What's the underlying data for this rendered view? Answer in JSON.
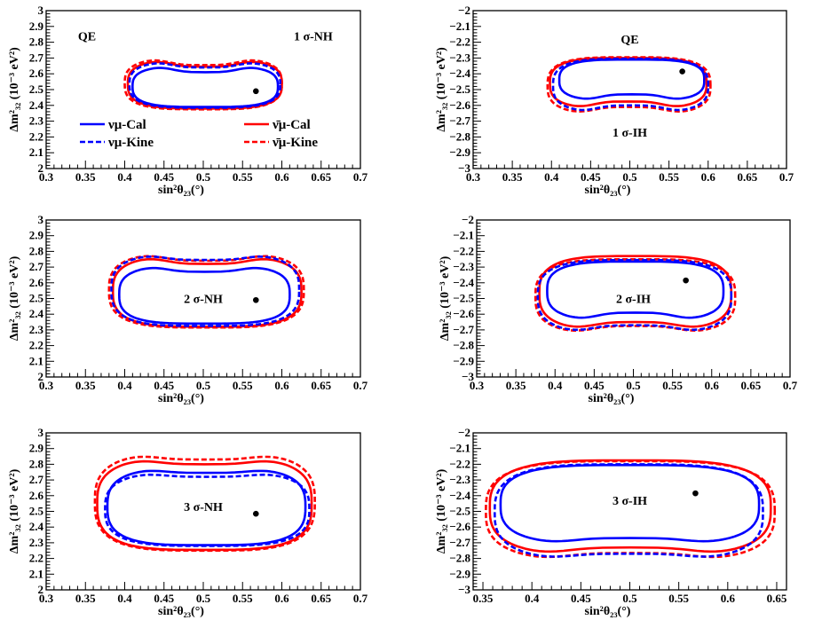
{
  "chart_data": [
    {
      "type": "contour",
      "xlabel": "sin²θ₂₃(°)",
      "ylabel": "Δm²₃₂ (10⁻³ eV²)",
      "xlim": [
        0.3,
        0.7
      ],
      "ylim": [
        2.0,
        3.0
      ],
      "xticks": [
        "0.3",
        "0.35",
        "0.4",
        "0.45",
        "0.5",
        "0.55",
        "0.6",
        "0.65",
        "0.7"
      ],
      "yticks": [
        "2",
        "2.1",
        "2.2",
        "2.3",
        "2.4",
        "2.5",
        "2.6",
        "2.7",
        "2.8",
        "2.9",
        "3"
      ],
      "annotations": [
        "QE",
        "1 σ-NH"
      ],
      "best_fit": [
        0.567,
        2.49
      ],
      "legend": {
        "nu_cal": "νμ-Cal",
        "nu_kine": "νμ-Kine",
        "nubar_cal": "ν̄μ-Cal",
        "nubar_kine": "ν̄μ-Kine"
      },
      "series": [
        {
          "name": "νμ-Cal",
          "color": "#0000ff",
          "dash": "solid",
          "x_range": [
            0.41,
            0.595
          ],
          "y_range": [
            2.39,
            2.65
          ],
          "dip": 0.04,
          "sag": 0.0
        },
        {
          "name": "νμ-Kine",
          "color": "#0000ff",
          "dash": "dashed",
          "x_range": [
            0.406,
            0.598
          ],
          "y_range": [
            2.385,
            2.68
          ],
          "dip": 0.04,
          "sag": 0.0
        },
        {
          "name": "ν̄μ-Cal",
          "color": "#ff0000",
          "dash": "solid",
          "x_range": [
            0.404,
            0.6
          ],
          "y_range": [
            2.38,
            2.69
          ],
          "dip": 0.045,
          "sag": 0.0
        },
        {
          "name": "ν̄μ-Kine",
          "color": "#ff0000",
          "dash": "dashed",
          "x_range": [
            0.4,
            0.6
          ],
          "y_range": [
            2.375,
            2.7
          ],
          "dip": 0.045,
          "sag": 0.0
        }
      ]
    },
    {
      "type": "contour",
      "xlabel": "sin²θ₂₃(°)",
      "ylabel": "Δm²₃₂ (10⁻³ eV²)",
      "xlim": [
        0.3,
        0.7
      ],
      "ylim": [
        -3.0,
        -2.0
      ],
      "xticks": [
        "0.3",
        "0.35",
        "0.4",
        "0.45",
        "0.5",
        "0.55",
        "0.6",
        "0.65",
        "0.7"
      ],
      "yticks": [
        "−3",
        "−2.9",
        "−2.8",
        "−2.7",
        "−2.6",
        "−2.5",
        "−2.4",
        "−2.3",
        "−2.2",
        "−2.1",
        "−2"
      ],
      "annotations": [
        "QE",
        "1 σ-IH"
      ],
      "best_fit": [
        0.567,
        -2.385
      ],
      "series": [
        {
          "name": "νμ-Cal",
          "color": "#0000ff",
          "dash": "solid",
          "x_range": [
            0.41,
            0.595
          ],
          "y_range": [
            -2.57,
            -2.31
          ],
          "dip": 0.0,
          "sag": 0.04
        },
        {
          "name": "νμ-Kine",
          "color": "#0000ff",
          "dash": "dashed",
          "x_range": [
            0.402,
            0.6
          ],
          "y_range": [
            -2.645,
            -2.305
          ],
          "dip": 0.0,
          "sag": 0.045
        },
        {
          "name": "ν̄μ-Cal",
          "color": "#ff0000",
          "dash": "solid",
          "x_range": [
            0.398,
            0.598
          ],
          "y_range": [
            -2.62,
            -2.3
          ],
          "dip": 0.0,
          "sag": 0.045
        },
        {
          "name": "ν̄μ-Kine",
          "color": "#ff0000",
          "dash": "dashed",
          "x_range": [
            0.395,
            0.603
          ],
          "y_range": [
            -2.655,
            -2.295
          ],
          "dip": 0.0,
          "sag": 0.045
        }
      ]
    },
    {
      "type": "contour",
      "xlabel": "sin²θ₂₃(°)",
      "ylabel": "Δm²₃₂ (10⁻³ eV²)",
      "xlim": [
        0.3,
        0.7
      ],
      "ylim": [
        2.0,
        3.0
      ],
      "xticks": [
        "0.3",
        "0.35",
        "0.4",
        "0.45",
        "0.5",
        "0.55",
        "0.6",
        "0.65",
        "0.7"
      ],
      "yticks": [
        "2",
        "2.1",
        "2.2",
        "2.3",
        "2.4",
        "2.5",
        "2.6",
        "2.7",
        "2.8",
        "2.9",
        "3"
      ],
      "annotations": [
        "2 σ-NH"
      ],
      "best_fit": [
        0.567,
        2.49
      ],
      "series": [
        {
          "name": "νμ-Cal",
          "color": "#0000ff",
          "dash": "solid",
          "x_range": [
            0.393,
            0.61
          ],
          "y_range": [
            2.34,
            2.71
          ],
          "dip": 0.04,
          "sag": 0.0
        },
        {
          "name": "νμ-Kine",
          "color": "#0000ff",
          "dash": "dashed",
          "x_range": [
            0.383,
            0.622
          ],
          "y_range": [
            2.325,
            2.785
          ],
          "dip": 0.04,
          "sag": 0.0
        },
        {
          "name": "ν̄μ-Cal",
          "color": "#ff0000",
          "dash": "solid",
          "x_range": [
            0.385,
            0.625
          ],
          "y_range": [
            2.32,
            2.77
          ],
          "dip": 0.05,
          "sag": 0.0
        },
        {
          "name": "ν̄μ-Kine",
          "color": "#ff0000",
          "dash": "dashed",
          "x_range": [
            0.38,
            0.628
          ],
          "y_range": [
            2.315,
            2.79
          ],
          "dip": 0.05,
          "sag": 0.0
        }
      ]
    },
    {
      "type": "contour",
      "xlabel": "sin²θ₂₃(°)",
      "ylabel": "Δm²₃₂ (10⁻³ eV²)",
      "xlim": [
        0.3,
        0.7
      ],
      "ylim": [
        -3.0,
        -2.0
      ],
      "xticks": [
        "0.3",
        "0.35",
        "0.4",
        "0.45",
        "0.5",
        "0.55",
        "0.6",
        "0.65",
        "0.7"
      ],
      "yticks": [
        "−3",
        "−2.9",
        "−2.8",
        "−2.7",
        "−2.6",
        "−2.5",
        "−2.4",
        "−2.3",
        "−2.2",
        "−2.1",
        "−2"
      ],
      "annotations": [
        "2 σ-IH"
      ],
      "best_fit": [
        0.567,
        -2.385
      ],
      "series": [
        {
          "name": "νμ-Cal",
          "color": "#0000ff",
          "dash": "solid",
          "x_range": [
            0.39,
            0.615
          ],
          "y_range": [
            -2.64,
            -2.265
          ],
          "dip": 0.0,
          "sag": 0.05
        },
        {
          "name": "νμ-Kine",
          "color": "#0000ff",
          "dash": "dashed",
          "x_range": [
            0.378,
            0.625
          ],
          "y_range": [
            -2.72,
            -2.255
          ],
          "dip": 0.0,
          "sag": 0.05
        },
        {
          "name": "ν̄μ-Cal",
          "color": "#ff0000",
          "dash": "solid",
          "x_range": [
            0.38,
            0.625
          ],
          "y_range": [
            -2.7,
            -2.23
          ],
          "dip": 0.0,
          "sag": 0.05
        },
        {
          "name": "ν̄μ-Kine",
          "color": "#ff0000",
          "dash": "dashed",
          "x_range": [
            0.375,
            0.63
          ],
          "y_range": [
            -2.725,
            -2.25
          ],
          "dip": 0.0,
          "sag": 0.05
        }
      ]
    },
    {
      "type": "contour",
      "xlabel": "sin²θ₂₃(°)",
      "ylabel": "Δm²₃₂ (10⁻³ eV²)",
      "xlim": [
        0.3,
        0.7
      ],
      "ylim": [
        2.0,
        3.0
      ],
      "xticks": [
        "0.3",
        "0.35",
        "0.4",
        "0.45",
        "0.5",
        "0.55",
        "0.6",
        "0.65",
        "0.7"
      ],
      "yticks": [
        "2",
        "2.1",
        "2.2",
        "2.3",
        "2.4",
        "2.5",
        "2.6",
        "2.7",
        "2.8",
        "2.9",
        "3"
      ],
      "annotations": [
        "3 σ-NH"
      ],
      "best_fit": [
        0.567,
        2.485
      ],
      "series": [
        {
          "name": "νμ-Cal",
          "color": "#0000ff",
          "dash": "solid",
          "x_range": [
            0.378,
            0.63
          ],
          "y_range": [
            2.285,
            2.775
          ],
          "dip": 0.03,
          "sag": 0.0
        },
        {
          "name": "νμ-Kine",
          "color": "#0000ff",
          "dash": "dashed",
          "x_range": [
            0.375,
            0.635
          ],
          "y_range": [
            2.28,
            2.75
          ],
          "dip": 0.03,
          "sag": 0.0
        },
        {
          "name": "ν̄μ-Cal",
          "color": "#ff0000",
          "dash": "solid",
          "x_range": [
            0.365,
            0.638
          ],
          "y_range": [
            2.255,
            2.84
          ],
          "dip": 0.04,
          "sag": 0.0
        },
        {
          "name": "ν̄μ-Kine",
          "color": "#ff0000",
          "dash": "dashed",
          "x_range": [
            0.362,
            0.642
          ],
          "y_range": [
            2.25,
            2.87
          ],
          "dip": 0.04,
          "sag": 0.0
        }
      ]
    },
    {
      "type": "contour",
      "xlabel": "sin²θ₂₃(°)",
      "ylabel": "Δm²₃₂ (10⁻³ eV²)",
      "xlim": [
        0.34,
        0.66
      ],
      "ylim": [
        -3.0,
        -2.0
      ],
      "xticks": [
        "0.35",
        "0.4",
        "0.45",
        "0.5",
        "0.55",
        "0.6",
        "0.65"
      ],
      "xtick_values": [
        0.35,
        0.4,
        0.45,
        0.5,
        0.55,
        0.6,
        0.65
      ],
      "yticks": [
        "−3",
        "−2.9",
        "−2.8",
        "−2.7",
        "−2.6",
        "−2.5",
        "−2.4",
        "−2.3",
        "−2.2",
        "−2.1",
        "−2"
      ],
      "annotations": [
        "3 σ-IH"
      ],
      "best_fit": [
        0.567,
        -2.385
      ],
      "series": [
        {
          "name": "νμ-Cal",
          "color": "#0000ff",
          "dash": "solid",
          "x_range": [
            0.368,
            0.632
          ],
          "y_range": [
            -2.71,
            -2.205
          ],
          "dip": 0.0,
          "sag": 0.04
        },
        {
          "name": "νμ-Kine",
          "color": "#0000ff",
          "dash": "dashed",
          "x_range": [
            0.362,
            0.636
          ],
          "y_range": [
            -2.81,
            -2.2
          ],
          "dip": 0.0,
          "sag": 0.04
        },
        {
          "name": "ν̄μ-Cal",
          "color": "#ff0000",
          "dash": "solid",
          "x_range": [
            0.357,
            0.644
          ],
          "y_range": [
            -2.78,
            -2.175
          ],
          "dip": 0.0,
          "sag": 0.05
        },
        {
          "name": "ν̄μ-Kine",
          "color": "#ff0000",
          "dash": "dashed",
          "x_range": [
            0.353,
            0.648
          ],
          "y_range": [
            -2.815,
            -2.18
          ],
          "dip": 0.0,
          "sag": 0.05
        }
      ]
    }
  ]
}
